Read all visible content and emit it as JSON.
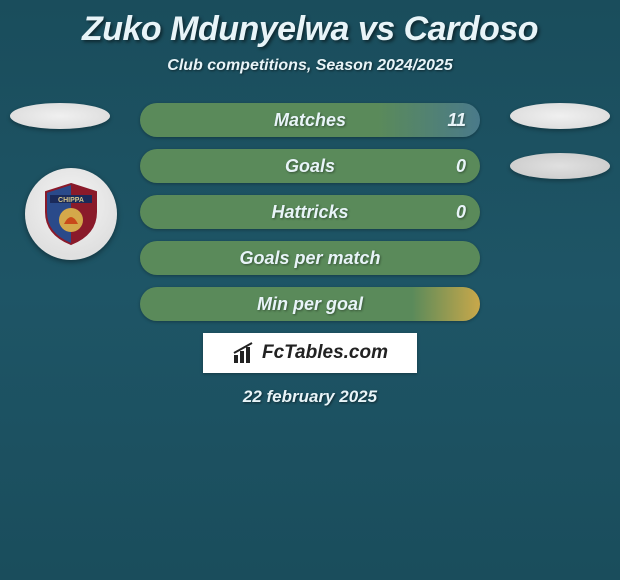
{
  "title": "Zuko Mdunyelwa vs Cardoso",
  "subtitle": "Club competitions, Season 2024/2025",
  "date": "22 february 2025",
  "logo_text": "FcTables.com",
  "badge_text": "CHIPPA",
  "colors": {
    "bg_gradient_start": "#1a4d5c",
    "bg_gradient_end": "#1e5566",
    "text": "#e8f4f8",
    "stat_bg_default": "#5a8a5a",
    "logo_bg": "#ffffff"
  },
  "stats": [
    {
      "label": "Matches",
      "value_right": "11",
      "bg": "linear-gradient(90deg, #5a8a5a 0%, #5a8a5a 70%, #4a7a8a 100%)"
    },
    {
      "label": "Goals",
      "value_right": "0",
      "bg": "#5a8a5a"
    },
    {
      "label": "Hattricks",
      "value_right": "0",
      "bg": "#5a8a5a"
    },
    {
      "label": "Goals per match",
      "value_right": "",
      "bg": "#5a8a5a"
    },
    {
      "label": "Min per goal",
      "value_right": "",
      "bg": "linear-gradient(90deg, #5a8a5a 0%, #5a8a5a 80%, #c9a84a 100%)"
    }
  ]
}
